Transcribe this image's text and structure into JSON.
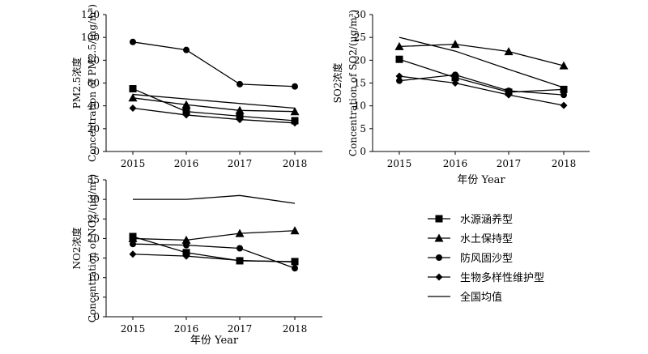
{
  "chart_data": [
    {
      "type": "line",
      "panel": "PM2.5",
      "ylabel_cn": "PM2.5浓度",
      "ylabel_en": "Concentration of PM2.5/(μg/m³)",
      "xlabel": "",
      "x": [
        "2015",
        "2016",
        "2017",
        "2018"
      ],
      "yticks": [
        "0",
        "20",
        "40",
        "60",
        "80",
        "100",
        "120"
      ],
      "ylim": [
        0,
        120
      ],
      "series": [
        {
          "name": "水源涵养型",
          "marker": "square",
          "values": [
            55,
            35,
            31,
            27
          ]
        },
        {
          "name": "水土保持型",
          "marker": "triangle",
          "values": [
            47,
            41,
            36,
            35
          ]
        },
        {
          "name": "防风固沙型",
          "marker": "circle",
          "values": [
            96,
            89,
            59,
            57
          ]
        },
        {
          "name": "生物多样性维护型",
          "marker": "diamond",
          "values": [
            38,
            32,
            28,
            25
          ]
        },
        {
          "name": "全国均值",
          "marker": "none",
          "values": [
            50,
            null,
            null,
            38
          ]
        }
      ]
    },
    {
      "type": "line",
      "panel": "SO2",
      "ylabel_cn": "SO2浓度",
      "ylabel_en": "Concentration of SO2/(μg/m³)",
      "xlabel": "年份 Year",
      "x": [
        "2015",
        "2016",
        "2017",
        "2018"
      ],
      "yticks": [
        "0",
        "5",
        "10",
        "15",
        "20",
        "25",
        "30"
      ],
      "ylim": [
        0,
        30
      ],
      "series": [
        {
          "name": "水源涵养型",
          "marker": "square",
          "values": [
            20.2,
            16.2,
            13,
            13.6
          ]
        },
        {
          "name": "水土保持型",
          "marker": "triangle",
          "values": [
            23,
            23.5,
            21.9,
            18.8
          ]
        },
        {
          "name": "防风固沙型",
          "marker": "circle",
          "values": [
            15.5,
            16.8,
            13.3,
            12.4
          ]
        },
        {
          "name": "生物多样性维护型",
          "marker": "diamond",
          "values": [
            16.5,
            15,
            12.4,
            10.1
          ]
        },
        {
          "name": "全国均值",
          "marker": "none",
          "values": [
            25,
            22,
            18,
            14
          ]
        }
      ]
    },
    {
      "type": "line",
      "panel": "NO2",
      "ylabel_cn": "NO2浓度",
      "ylabel_en": "Concentration of NO2/(μg/m³)",
      "xlabel": "年份 Year",
      "x": [
        "2015",
        "2016",
        "2017",
        "2018"
      ],
      "yticks": [
        "0",
        "5",
        "10",
        "15",
        "20",
        "25",
        "30",
        "35"
      ],
      "ylim": [
        0,
        35
      ],
      "series": [
        {
          "name": "水源涵养型",
          "marker": "square",
          "values": [
            20.5,
            16.4,
            14.3,
            14.1
          ]
        },
        {
          "name": "水土保持型",
          "marker": "triangle",
          "values": [
            20,
            19.6,
            21.3,
            22
          ]
        },
        {
          "name": "防风固沙型",
          "marker": "circle",
          "values": [
            18.6,
            18.3,
            17.5,
            12.4
          ]
        },
        {
          "name": "生物多样性维护型",
          "marker": "diamond",
          "values": [
            16,
            15.5,
            14.4,
            14
          ]
        },
        {
          "name": "全国均值",
          "marker": "none",
          "values": [
            30,
            30,
            31,
            29
          ]
        }
      ]
    }
  ],
  "legend": [
    {
      "label": "水源涵养型",
      "marker": "square"
    },
    {
      "label": "水土保持型",
      "marker": "triangle"
    },
    {
      "label": "防风固沙型",
      "marker": "circle"
    },
    {
      "label": "生物多样性维护型",
      "marker": "diamond"
    },
    {
      "label": "全国均值",
      "marker": "none"
    }
  ]
}
